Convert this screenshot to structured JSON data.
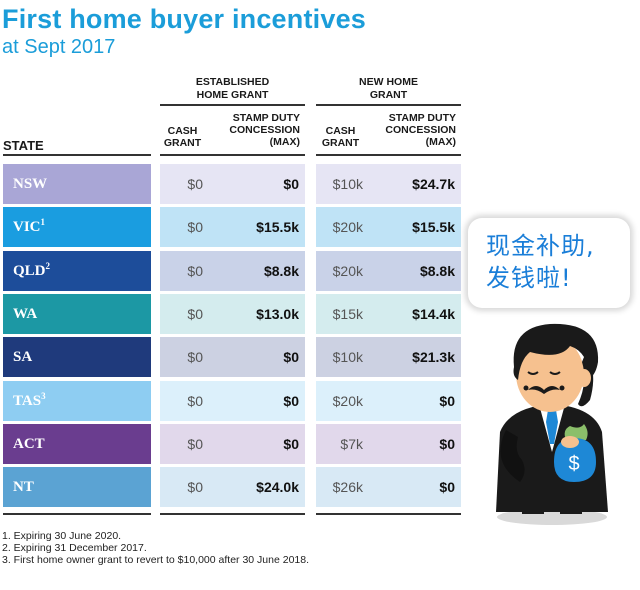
{
  "title": "First home buyer incentives",
  "subtitle": "at Sept 2017",
  "groups": {
    "established": "ESTABLISHED HOME GRANT",
    "new": "NEW HOME GRANT"
  },
  "columns": {
    "state": "STATE",
    "cash_grant": "CASH GRANT",
    "stamp_duty": "STAMP DUTY CONCESSION (MAX)"
  },
  "rows": [
    {
      "state": "NSW",
      "sup": "",
      "color": "#a9a6d6",
      "est_cash": "$0",
      "est_stamp": "$0",
      "new_cash": "$10k",
      "new_stamp": "$24.7k"
    },
    {
      "state": "VIC",
      "sup": "1",
      "color": "#1a9de0",
      "est_cash": "$0",
      "est_stamp": "$15.5k",
      "new_cash": "$20k",
      "new_stamp": "$15.5k"
    },
    {
      "state": "QLD",
      "sup": "2",
      "color": "#1d4d9a",
      "est_cash": "$0",
      "est_stamp": "$8.8k",
      "new_cash": "$20k",
      "new_stamp": "$8.8k"
    },
    {
      "state": "WA",
      "sup": "",
      "color": "#1c98a4",
      "est_cash": "$0",
      "est_stamp": "$13.0k",
      "new_cash": "$15k",
      "new_stamp": "$14.4k"
    },
    {
      "state": "SA",
      "sup": "",
      "color": "#1f3a7c",
      "est_cash": "$0",
      "est_stamp": "$0",
      "new_cash": "$10k",
      "new_stamp": "$21.3k"
    },
    {
      "state": "TAS",
      "sup": "3",
      "color": "#8ecdf2",
      "est_cash": "$0",
      "est_stamp": "$0",
      "new_cash": "$20k",
      "new_stamp": "$0"
    },
    {
      "state": "ACT",
      "sup": "",
      "color": "#6a3d8f",
      "est_cash": "$0",
      "est_stamp": "$0",
      "new_cash": "$7k",
      "new_stamp": "$0"
    },
    {
      "state": "NT",
      "sup": "",
      "color": "#5ba3d3",
      "est_cash": "$0",
      "est_stamp": "$24.0k",
      "new_cash": "$26k",
      "new_stamp": "$0"
    }
  ],
  "row_tints": [
    "#e6e5f4",
    "#bfe3f6",
    "#c9d2e8",
    "#d4ecee",
    "#ccd1e2",
    "#dcf0fb",
    "#e1d8eb",
    "#d8e9f5"
  ],
  "footnotes": [
    "1. Expiring 30 June 2020.",
    "2. Expiring 31 December 2017.",
    "3. First home owner grant to revert to $10,000 after 30 June 2018."
  ],
  "bubble": {
    "line1": "现金补助,",
    "line2": "发钱啦!"
  },
  "mascot": {
    "bag_symbol": "$"
  }
}
